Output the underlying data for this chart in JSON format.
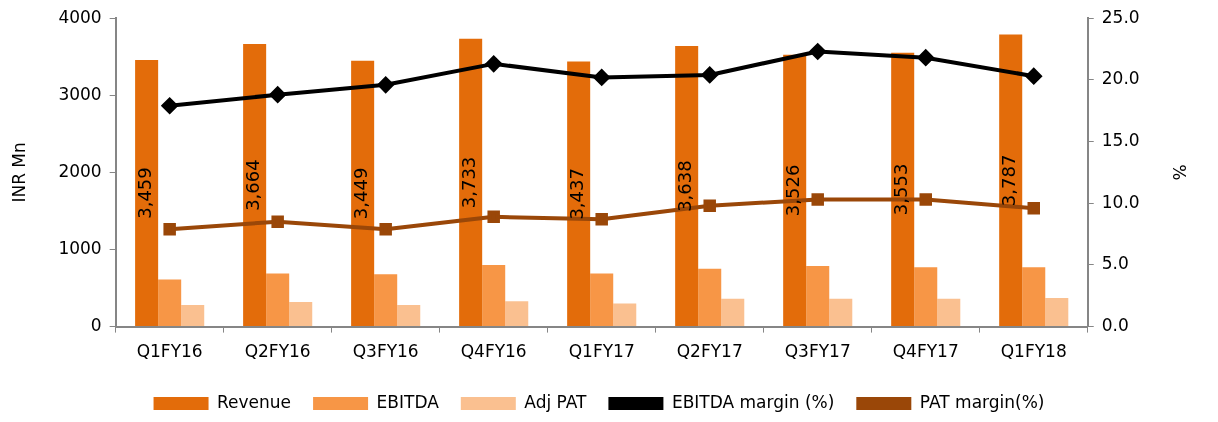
{
  "chart_data": {
    "type": "bar",
    "categories": [
      "Q1FY16",
      "Q2FY16",
      "Q3FY16",
      "Q4FY16",
      "Q1FY17",
      "Q2FY17",
      "Q3FY17",
      "Q4FY17",
      "Q1FY18"
    ],
    "ylabel": "INR Mn",
    "y2label": "%",
    "ylim": [
      0,
      4000
    ],
    "yticks": [
      0,
      1000,
      2000,
      3000,
      4000
    ],
    "y2lim": [
      0,
      25
    ],
    "y2ticks": [
      {
        "value": 0,
        "label": "0.0"
      },
      {
        "value": 5,
        "label": "5.0"
      },
      {
        "value": 10,
        "label": "10.0"
      },
      {
        "value": 15,
        "label": "15.0"
      },
      {
        "value": 20,
        "label": "20.0"
      },
      {
        "value": 25,
        "label": "25.0"
      }
    ],
    "series": [
      {
        "name": "Revenue",
        "color": "#e36c0a",
        "values": [
          3459,
          3664,
          3449,
          3733,
          3437,
          3638,
          3526,
          3553,
          3787
        ],
        "value_labels": [
          "3,459",
          "3,664",
          "3,449",
          "3,733",
          "3,437",
          "3,638",
          "3,526",
          "3,553",
          "3,787"
        ]
      },
      {
        "name": "EBITDA",
        "color": "#f79646",
        "values": [
          610,
          690,
          680,
          800,
          690,
          750,
          785,
          770,
          770
        ]
      },
      {
        "name": "Adj PAT",
        "color": "#fac090",
        "values": [
          280,
          320,
          280,
          330,
          300,
          360,
          360,
          360,
          370
        ]
      },
      {
        "name": "EBITDA margin (%)",
        "type": "line",
        "axis": "y2",
        "color": "#000000",
        "marker": "diamond",
        "values": [
          17.9,
          18.8,
          19.6,
          21.3,
          20.2,
          20.4,
          22.3,
          21.8,
          20.3
        ]
      },
      {
        "name": "PAT margin(%)",
        "type": "line",
        "axis": "y2",
        "color": "#9a4708",
        "marker": "square",
        "values": [
          7.9,
          8.5,
          7.9,
          8.9,
          8.7,
          9.8,
          10.3,
          10.3,
          9.6
        ]
      }
    ],
    "legend": "bottom",
    "grid": false
  }
}
